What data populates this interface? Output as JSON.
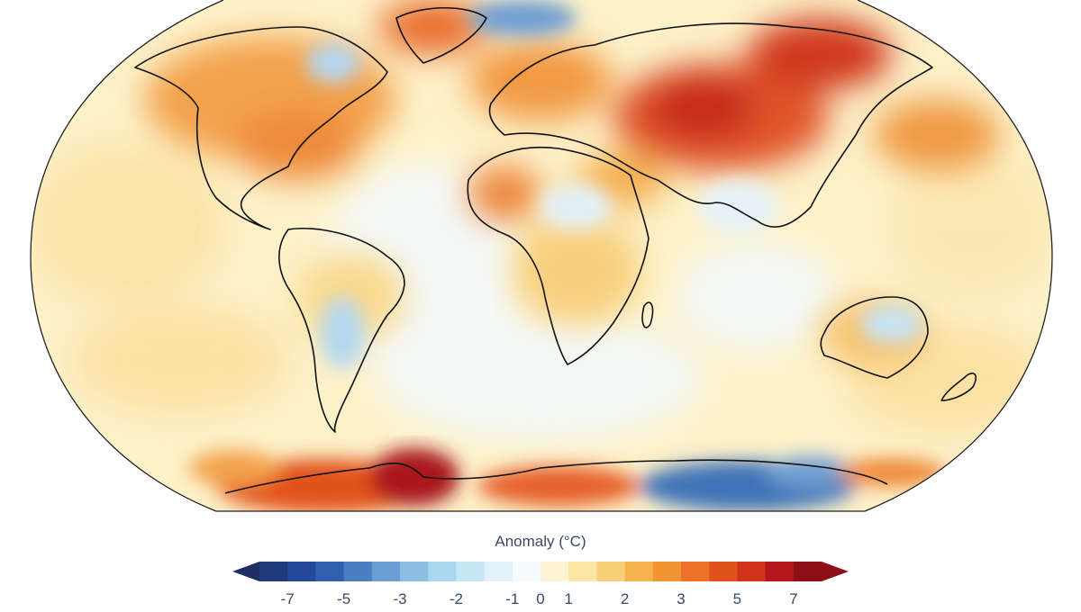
{
  "legend": {
    "title": "Anomaly (°C)",
    "ticks": [
      "-7",
      "-5",
      "-3",
      "-2",
      "-1",
      "0",
      "1",
      "2",
      "3",
      "5",
      "7"
    ],
    "colors": [
      "#1f3a7a",
      "#23489a",
      "#2f5fae",
      "#4a7fc1",
      "#6a9fd4",
      "#8cbde5",
      "#aad6f0",
      "#c7e6f5",
      "#e2f1fa",
      "#f6fbfd",
      "#fdf3d4",
      "#fce6a6",
      "#f9d07a",
      "#f6b24f",
      "#f29535",
      "#ec7328",
      "#e1521f",
      "#cf341b",
      "#b3161b",
      "#8f0f17"
    ],
    "low_arrow_color": "#1f2f66",
    "high_arrow_color": "#8f0f17"
  }
}
